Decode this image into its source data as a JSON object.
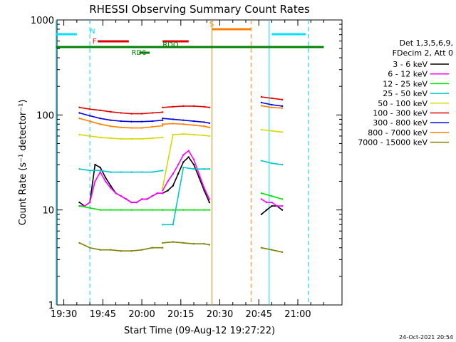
{
  "chart_data": {
    "type": "line",
    "title": "RHESSI Observing Summary Count Rates",
    "xlabel": "Start Time (09-Aug-12 19:27:22)",
    "ylabel": "Count Rate (s⁻¹ detector⁻¹)",
    "ylim": [
      1,
      1000
    ],
    "yscale": "log",
    "xlim_minutes_of_day": [
      1167.37,
      1277.0
    ],
    "x_ticks": [
      "19:30",
      "19:45",
      "20:00",
      "20:15",
      "20:30",
      "20:45",
      "21:00"
    ],
    "y_ticks": [
      "1",
      "10",
      "100",
      "1000"
    ],
    "footer": "24-Oct-2021 20:54",
    "legend": {
      "header_lines": [
        "Det 1,3,5,6,9,",
        "FDecim 2, Att 0"
      ],
      "placement": "right",
      "entries": [
        {
          "label": "3 - 6 keV",
          "color": "#000000"
        },
        {
          "label": "6 - 12 keV",
          "color": "#ff00ff"
        },
        {
          "label": "12 - 25 keV",
          "color": "#00e000"
        },
        {
          "label": "25 - 50 keV",
          "color": "#00c8c8"
        },
        {
          "label": "50 - 100 keV",
          "color": "#d8d800"
        },
        {
          "label": "100 - 300 keV",
          "color": "#e00000"
        },
        {
          "label": "300 - 800 keV",
          "color": "#0000e0"
        },
        {
          "label": "800 - 7000 keV",
          "color": "#ff8000"
        },
        {
          "label": "7000 - 15000 keV",
          "color": "#808000"
        }
      ]
    },
    "flags": [
      {
        "label": "N",
        "color": "#00e0ff",
        "segments": [
          [
            "19:27",
            "19:35"
          ],
          [
            "20:50",
            "21:03"
          ]
        ]
      },
      {
        "label": "F",
        "color": "#e00000",
        "segments": [
          [
            "19:43",
            "19:55"
          ],
          [
            "20:08",
            "20:18"
          ]
        ]
      },
      {
        "label": "RDO",
        "color": "#008000",
        "segments": [
          [
            "19:27",
            "21:10"
          ]
        ]
      },
      {
        "label": "RD6",
        "color": "#008000",
        "segments": [
          [
            "19:59",
            "20:03"
          ]
        ]
      },
      {
        "label": "S",
        "color": "#ff8000",
        "segments": [
          [
            "20:27",
            "20:42"
          ]
        ]
      }
    ],
    "vlines": [
      {
        "label": "N",
        "color": "#00e0ff",
        "style": "solid",
        "times": [
          "19:27",
          "20:49"
        ]
      },
      {
        "label": "N",
        "color": "#00e0ff",
        "style": "dashed",
        "times": [
          "19:40",
          "21:04"
        ]
      },
      {
        "label": "S",
        "color": "#ff8000",
        "style": "solid",
        "times": [
          "20:27"
        ]
      },
      {
        "label": "S",
        "color": "#ff8000",
        "style": "dashed",
        "times": [
          "20:42"
        ]
      }
    ],
    "series": [
      {
        "name": "3 - 6 keV",
        "color": "#000000",
        "segments": [
          {
            "x": [
              "19:36",
              "19:38",
              "19:40",
              "19:42",
              "19:44",
              "19:46",
              "19:48",
              "19:50",
              "19:52",
              "19:54",
              "19:56",
              "19:58",
              "20:00",
              "20:02",
              "20:04",
              "20:06",
              "20:08"
            ],
            "y": [
              12,
              11,
              12,
              30,
              28,
              22,
              18,
              15,
              14,
              13,
              12,
              12,
              13,
              13,
              14,
              15,
              15
            ]
          },
          {
            "x": [
              "20:08",
              "20:10",
              "20:12",
              "20:14",
              "20:16",
              "20:18",
              "20:20",
              "20:22",
              "20:24",
              "20:26"
            ],
            "y": [
              15,
              16,
              18,
              24,
              32,
              36,
              30,
              22,
              16,
              12
            ]
          },
          {
            "x": [
              "20:46",
              "20:48",
              "20:50",
              "20:52",
              "20:54"
            ],
            "y": [
              9,
              10,
              11,
              11,
              10
            ]
          }
        ]
      },
      {
        "name": "6 - 12 keV",
        "color": "#ff00ff",
        "segments": [
          {
            "x": [
              "19:36",
              "19:38",
              "19:40",
              "19:42",
              "19:44",
              "19:46",
              "19:48",
              "19:50",
              "19:52",
              "19:54",
              "19:56",
              "19:58",
              "20:00",
              "20:02",
              "20:04",
              "20:06",
              "20:08"
            ],
            "y": [
              11,
              11,
              12,
              20,
              25,
              20,
              17,
              15,
              14,
              13,
              12,
              12,
              13,
              13,
              14,
              15,
              15
            ]
          },
          {
            "x": [
              "20:08",
              "20:10",
              "20:12",
              "20:14",
              "20:16",
              "20:18",
              "20:20",
              "20:22",
              "20:24",
              "20:26"
            ],
            "y": [
              16,
              20,
              24,
              30,
              38,
              42,
              34,
              24,
              17,
              13
            ]
          },
          {
            "x": [
              "20:46",
              "20:48",
              "20:50",
              "20:52",
              "20:54"
            ],
            "y": [
              13,
              12,
              12,
              11,
              11
            ]
          }
        ]
      },
      {
        "name": "12 - 25 keV",
        "color": "#00e000",
        "segments": [
          {
            "x": [
              "19:36",
              "19:40",
              "19:44",
              "19:48",
              "19:52",
              "19:56",
              "20:00",
              "20:04",
              "20:08"
            ],
            "y": [
              11,
              10.5,
              10,
              10,
              10,
              10,
              10,
              10,
              10
            ]
          },
          {
            "x": [
              "20:08",
              "20:12",
              "20:16",
              "20:20",
              "20:24",
              "20:26"
            ],
            "y": [
              10,
              10,
              10,
              10,
              10,
              10
            ]
          },
          {
            "x": [
              "20:46",
              "20:50",
              "20:54"
            ],
            "y": [
              15,
              14,
              13
            ]
          }
        ]
      },
      {
        "name": "25 - 50 keV",
        "color": "#00c8c8",
        "segments": [
          {
            "x": [
              "19:36",
              "19:40",
              "19:44",
              "19:48",
              "19:52",
              "19:56",
              "20:00",
              "20:04",
              "20:08"
            ],
            "y": [
              27,
              26,
              26,
              25,
              25,
              25,
              25,
              25,
              26
            ]
          },
          {
            "x": [
              "20:08",
              "20:12",
              "20:16",
              "20:20",
              "20:24",
              "20:26"
            ],
            "y": [
              7,
              7,
              28,
              27,
              27,
              27
            ]
          },
          {
            "x": [
              "20:46",
              "20:50",
              "20:54"
            ],
            "y": [
              33,
              31,
              30
            ]
          }
        ]
      },
      {
        "name": "50 - 100 keV",
        "color": "#d8d800",
        "segments": [
          {
            "x": [
              "19:36",
              "19:40",
              "19:44",
              "19:48",
              "19:52",
              "19:56",
              "20:00",
              "20:04",
              "20:08"
            ],
            "y": [
              62,
              60,
              58,
              57,
              56,
              56,
              56,
              57,
              58
            ]
          },
          {
            "x": [
              "20:08",
              "20:12",
              "20:16",
              "20:20",
              "20:24",
              "20:26"
            ],
            "y": [
              17,
              62,
              63,
              62,
              61,
              60
            ]
          },
          {
            "x": [
              "20:46",
              "20:50",
              "20:54"
            ],
            "y": [
              70,
              68,
              66
            ]
          }
        ]
      },
      {
        "name": "100 - 300 keV",
        "color": "#e00000",
        "segments": [
          {
            "x": [
              "19:36",
              "19:40",
              "19:44",
              "19:48",
              "19:52",
              "19:56",
              "20:00",
              "20:04",
              "20:08"
            ],
            "y": [
              120,
              115,
              112,
              108,
              105,
              103,
              103,
              105,
              107
            ]
          },
          {
            "x": [
              "20:08",
              "20:12",
              "20:16",
              "20:20",
              "20:24",
              "20:26"
            ],
            "y": [
              120,
              122,
              124,
              124,
              122,
              120
            ]
          },
          {
            "x": [
              "20:46",
              "20:50",
              "20:54"
            ],
            "y": [
              155,
              150,
              145
            ]
          }
        ]
      },
      {
        "name": "300 - 800 keV",
        "color": "#0000e0",
        "segments": [
          {
            "x": [
              "19:36",
              "19:40",
              "19:44",
              "19:48",
              "19:52",
              "19:56",
              "20:00",
              "20:04",
              "20:08"
            ],
            "y": [
              105,
              98,
              92,
              88,
              86,
              85,
              85,
              86,
              88
            ]
          },
          {
            "x": [
              "20:08",
              "20:12",
              "20:16",
              "20:20",
              "20:24",
              "20:26"
            ],
            "y": [
              92,
              90,
              88,
              86,
              84,
              82
            ]
          },
          {
            "x": [
              "20:46",
              "20:50",
              "20:54"
            ],
            "y": [
              135,
              128,
              124
            ]
          }
        ]
      },
      {
        "name": "800 - 7000 keV",
        "color": "#ff8000",
        "segments": [
          {
            "x": [
              "19:36",
              "19:40",
              "19:44",
              "19:48",
              "19:52",
              "19:56",
              "20:00",
              "20:04",
              "20:08"
            ],
            "y": [
              92,
              86,
              80,
              76,
              74,
              73,
              73,
              75,
              77
            ]
          },
          {
            "x": [
              "20:08",
              "20:12",
              "20:16",
              "20:20",
              "20:24",
              "20:26"
            ],
            "y": [
              80,
              81,
              80,
              78,
              76,
              74
            ]
          },
          {
            "x": [
              "20:46",
              "20:50",
              "20:54"
            ],
            "y": [
              125,
              120,
              118
            ]
          }
        ]
      },
      {
        "name": "7000 - 15000 keV",
        "color": "#808000",
        "segments": [
          {
            "x": [
              "19:36",
              "19:40",
              "19:44",
              "19:48",
              "19:52",
              "19:56",
              "20:00",
              "20:04",
              "20:08"
            ],
            "y": [
              4.5,
              4,
              3.8,
              3.8,
              3.7,
              3.7,
              3.8,
              4,
              4
            ]
          },
          {
            "x": [
              "20:08",
              "20:12",
              "20:16",
              "20:20",
              "20:24",
              "20:26"
            ],
            "y": [
              4.5,
              4.6,
              4.5,
              4.4,
              4.4,
              4.3
            ]
          },
          {
            "x": [
              "20:46",
              "20:50",
              "20:54"
            ],
            "y": [
              4,
              3.8,
              3.6
            ]
          }
        ]
      }
    ]
  }
}
